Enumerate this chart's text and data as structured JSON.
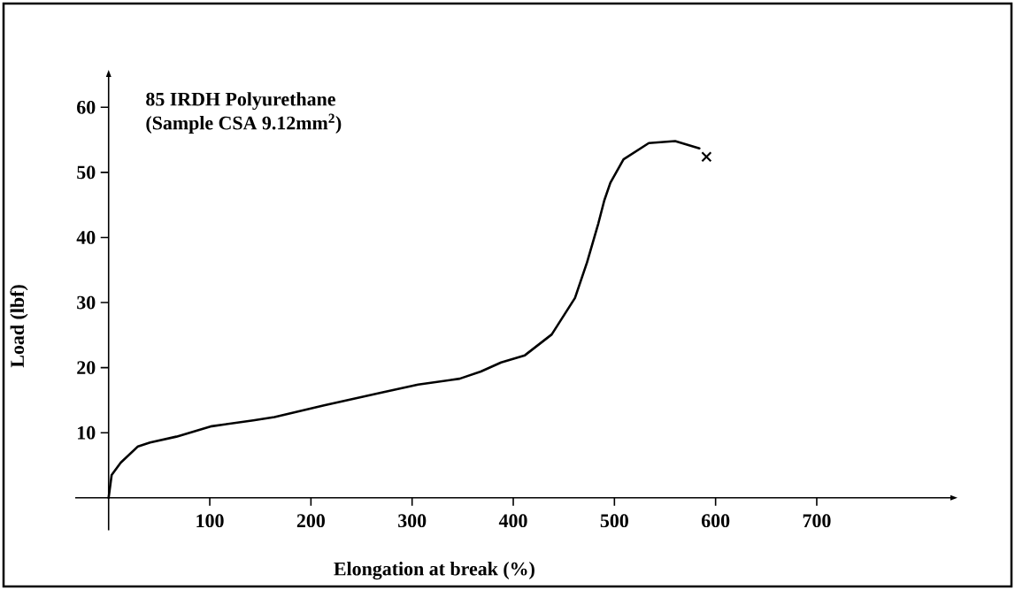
{
  "chart_data": {
    "type": "line",
    "xlabel": "Elongation at break (%)",
    "ylabel": "Load (lbf)",
    "annotations": [
      "85 IRDH Polyurethane",
      "(Sample CSA 9.12mm$^{2}$)"
    ],
    "xlim": [
      -33,
      833
    ],
    "ylim": [
      -5,
      64.8
    ],
    "xticks": [
      100,
      200,
      300,
      400,
      500,
      600,
      700
    ],
    "yticks": [
      10,
      20,
      30,
      40,
      50,
      60
    ],
    "series": [
      {
        "color": "#000000",
        "line_style": "solid",
        "x": [
          0,
          3,
          12,
          29,
          41,
          67,
          102,
          143,
          164,
          213,
          271,
          306,
          347,
          368,
          388,
          411.5,
          438,
          461,
          473,
          484,
          490,
          496,
          509,
          534,
          560,
          584
        ],
        "values": [
          0,
          3.5,
          5.4,
          7.9,
          8.5,
          9.4,
          11.0,
          11.9,
          12.4,
          14.2,
          16.2,
          17.4,
          18.3,
          19.4,
          20.8,
          21.9,
          25.1,
          30.7,
          36.2,
          42.1,
          45.7,
          48.4,
          52.0,
          54.5,
          54.8,
          53.7
        ]
      },
      {
        "type": "scatter",
        "color": "#000000",
        "marker": "cross",
        "x": [
          591
        ],
        "values": [
          52.4
        ]
      }
    ]
  }
}
